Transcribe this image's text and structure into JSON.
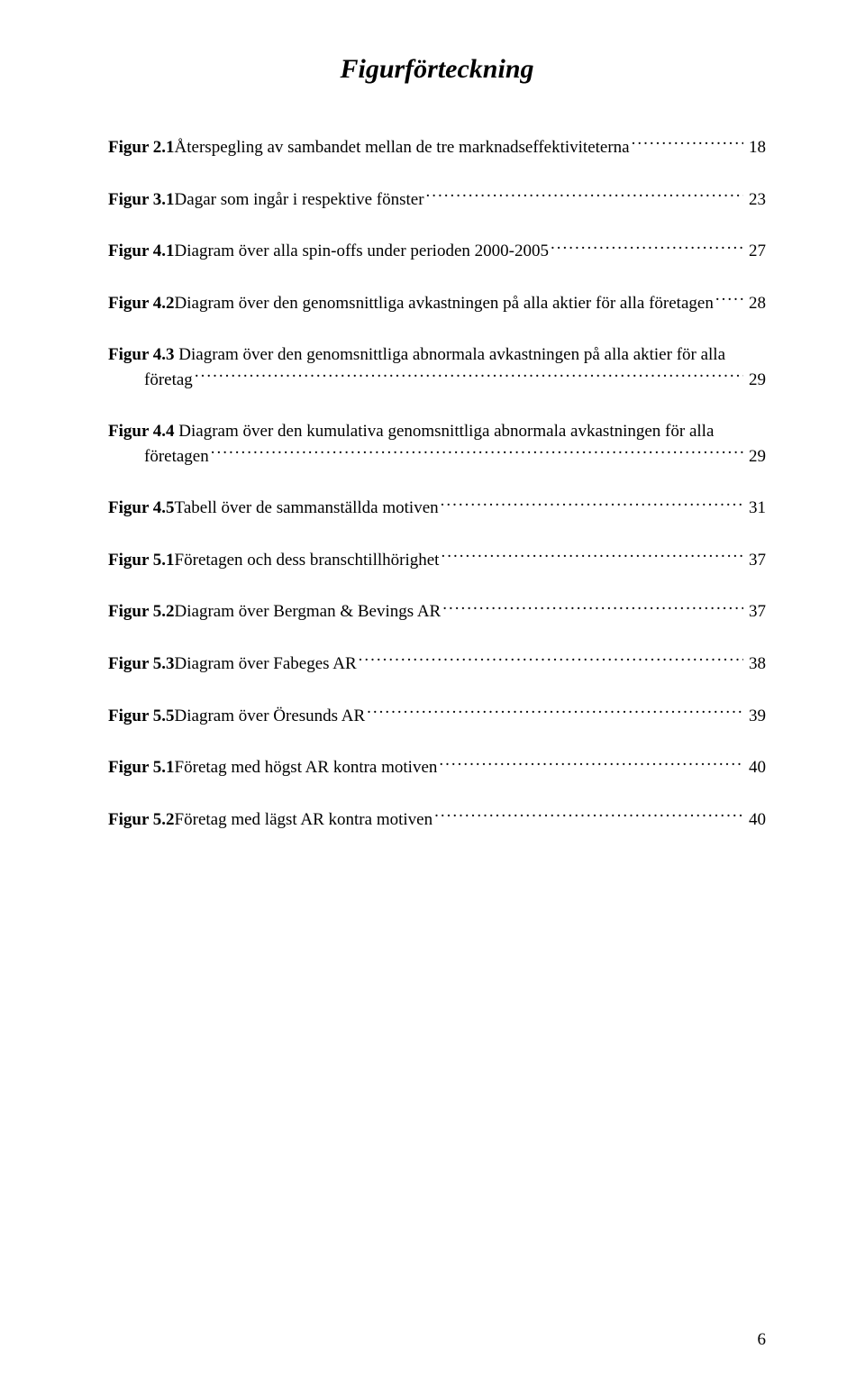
{
  "title": "Figurförteckning",
  "entries": [
    {
      "prefix": "Figur 2.1",
      "tail": " Återspegling av sambandet mellan de tre marknadseffektiviteterna",
      "page": "18",
      "indent": false
    },
    {
      "prefix": "Figur 3.1",
      "tail": " Dagar som ingår i respektive fönster",
      "page": "23",
      "indent": false
    },
    {
      "prefix": "Figur 4.1",
      "tail": " Diagram över alla spin-offs under perioden 2000-2005",
      "page": "27",
      "indent": false
    },
    {
      "prefix": "Figur 4.2",
      "tail": " Diagram över den genomsnittliga avkastningen på alla aktier för alla företagen",
      "page": "28",
      "indent": false
    },
    {
      "prefix": "Figur 4.3",
      "line1_tail": " Diagram över den genomsnittliga abnormala avkastningen på alla aktier för alla",
      "tail": "företag",
      "page": "29",
      "indent": true
    },
    {
      "prefix": "Figur 4.4",
      "line1_tail": " Diagram över den kumulativa genomsnittliga abnormala  avkastningen för alla",
      "tail": "företagen",
      "page": "29",
      "indent": true
    },
    {
      "prefix": "Figur 4.5",
      "tail": " Tabell över de sammanställda motiven",
      "page": "31",
      "indent": false
    },
    {
      "prefix": "Figur 5.1",
      "tail": " Företagen och dess branschtillhörighet",
      "page": "37",
      "indent": false
    },
    {
      "prefix": "Figur 5.2",
      "tail": " Diagram över Bergman & Bevings AR",
      "page": "37",
      "indent": false
    },
    {
      "prefix": "Figur 5.3",
      "tail": " Diagram över Fabeges AR",
      "page": "38",
      "indent": false
    },
    {
      "prefix": "Figur 5.5",
      "tail": " Diagram över Öresunds AR",
      "page": "39",
      "indent": false
    },
    {
      "prefix": "Figur 5.1",
      "tail": " Företag med högst AR kontra motiven",
      "page": "40",
      "indent": false
    },
    {
      "prefix": "Figur 5.2",
      "tail": " Företag med lägst AR kontra motiven",
      "page": "40",
      "indent": false
    }
  ],
  "page_number": "6"
}
